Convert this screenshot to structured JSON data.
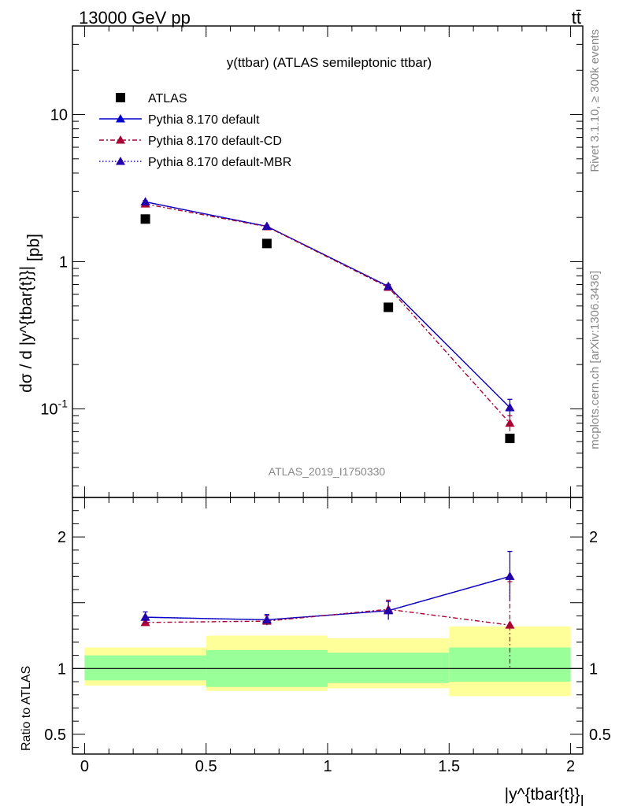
{
  "header": {
    "energy_label": "13000 GeV pp",
    "process_label": "tt̄"
  },
  "side": {
    "rivet_label": "Rivet 3.1.10, ≥ 300k events",
    "mcplots_label": "mcplots.cern.ch [arXiv:1306.3436]"
  },
  "watermark": "ATLAS_2019_I1750330",
  "colors": {
    "data": "#000000",
    "default": "#0000cc",
    "cd": "#aa0033",
    "mbr": "#2200aa",
    "band_inner": "#99ff99",
    "band_outer": "#ffff99"
  },
  "chart_data": [
    {
      "type": "line",
      "title": "y(ttbar) (ATLAS semileptonic ttbar)",
      "ylabel": "dσ / d |y^{tbar{t}}| [pb]",
      "yscale": "log",
      "ylim": [
        0.025,
        40
      ],
      "xlim": [
        -0.05,
        2.05
      ],
      "ytick_labels": [
        "10^{-1}",
        "1",
        "10"
      ],
      "ytick_values": [
        0.1,
        1,
        10
      ],
      "legend_position": "top-left",
      "x": [
        0.25,
        0.75,
        1.25,
        1.75
      ],
      "series": [
        {
          "name": "ATLAS",
          "style": "data",
          "values": [
            1.95,
            1.33,
            0.49,
            0.063
          ]
        },
        {
          "name": "Pythia 8.170 default",
          "style": "default",
          "values": [
            2.55,
            1.74,
            0.68,
            0.102
          ],
          "errors": [
            0.05,
            0.03,
            0.02,
            0.014
          ]
        },
        {
          "name": "Pythia 8.170 default-CD",
          "style": "cd",
          "values": [
            2.47,
            1.73,
            0.67,
            0.08
          ],
          "errors": [
            0.05,
            0.03,
            0.02,
            0.01
          ]
        },
        {
          "name": "Pythia 8.170 default-MBR",
          "style": "mbr",
          "values": [
            2.55,
            1.74,
            0.68,
            0.102
          ],
          "errors": [
            0.05,
            0.03,
            0.02,
            0.014
          ]
        }
      ]
    },
    {
      "type": "line",
      "title": "",
      "ylabel": "Ratio to ATLAS",
      "xlabel": "|y^{tbar{t}}|",
      "ylim": [
        0.35,
        2.3
      ],
      "xlim": [
        -0.05,
        2.05
      ],
      "ytick_labels": [
        "0.5",
        "1",
        "2"
      ],
      "ytick_values": [
        0.5,
        1,
        2
      ],
      "xtick_labels": [
        "0",
        "0.5",
        "1",
        "1.5",
        "2"
      ],
      "xtick_values": [
        0,
        0.5,
        1,
        1.5,
        2
      ],
      "x": [
        0.25,
        0.75,
        1.25,
        1.75
      ],
      "bands": [
        {
          "xlo": 0.0,
          "xhi": 0.5,
          "inner": [
            0.91,
            1.1
          ],
          "outer": [
            0.87,
            1.16
          ]
        },
        {
          "xlo": 0.5,
          "xhi": 1.0,
          "inner": [
            0.86,
            1.14
          ],
          "outer": [
            0.83,
            1.25
          ]
        },
        {
          "xlo": 1.0,
          "xhi": 1.5,
          "inner": [
            0.89,
            1.12
          ],
          "outer": [
            0.85,
            1.23
          ]
        },
        {
          "xlo": 1.5,
          "xhi": 2.0,
          "inner": [
            0.9,
            1.16
          ],
          "outer": [
            0.79,
            1.32
          ]
        }
      ],
      "series": [
        {
          "name": "Pythia 8.170 default",
          "style": "default",
          "values": [
            1.39,
            1.37,
            1.44,
            1.7
          ],
          "errors": [
            0.04,
            0.04,
            0.07,
            0.19
          ]
        },
        {
          "name": "Pythia 8.170 default-CD",
          "style": "cd",
          "values": [
            1.35,
            1.36,
            1.45,
            1.33
          ],
          "errors": [
            0.04,
            0.04,
            0.07,
            0.33
          ]
        },
        {
          "name": "Pythia 8.170 default-MBR",
          "style": "mbr",
          "values": [
            1.39,
            1.37,
            1.44,
            1.7
          ],
          "errors": [
            0.04,
            0.04,
            0.07,
            0.19
          ]
        }
      ]
    }
  ]
}
